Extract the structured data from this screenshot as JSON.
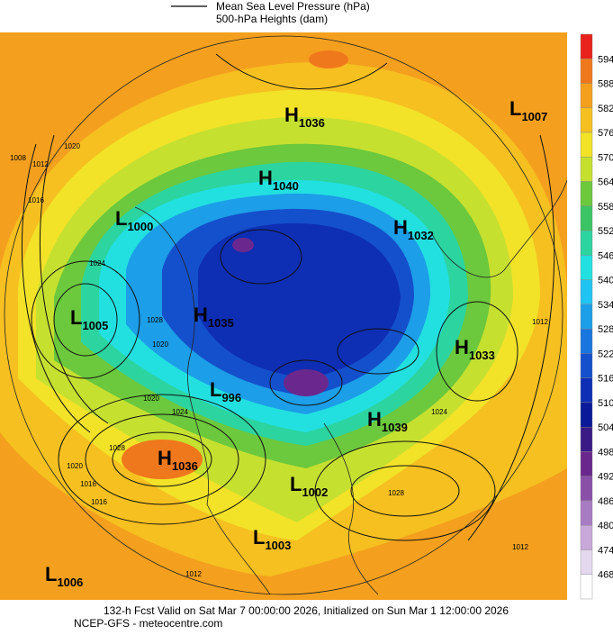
{
  "legend": {
    "items": [
      "Mean Sea Level Pressure (hPa)",
      "500-hPa Heights (dam)"
    ]
  },
  "colorbar": {
    "labels": [
      594,
      588,
      582,
      576,
      570,
      564,
      558,
      552,
      546,
      540,
      534,
      528,
      522,
      516,
      510,
      504,
      498,
      492,
      486,
      480,
      474,
      468
    ],
    "colors": [
      "#e8221c",
      "#f0781c",
      "#f4a01e",
      "#f6c020",
      "#f2e228",
      "#c6e030",
      "#6cc83c",
      "#3cc464",
      "#2cd4a0",
      "#22e0e0",
      "#20c4f2",
      "#1c9ee8",
      "#1876de",
      "#1450cc",
      "#0e2eb4",
      "#0a1a98",
      "#3a1a86",
      "#6a288e",
      "#8a50a8",
      "#a87cc2",
      "#c8a8d8",
      "#e4d8ee",
      "#ffffff"
    ]
  },
  "pressure_centers": [
    {
      "letter": "H",
      "value": "1036"
    },
    {
      "letter": "L",
      "value": "1007"
    },
    {
      "letter": "H",
      "value": "1040"
    },
    {
      "letter": "L",
      "value": "1000"
    },
    {
      "letter": "H",
      "value": "1032"
    },
    {
      "letter": "L",
      "value": "1005"
    },
    {
      "letter": "H",
      "value": "1035"
    },
    {
      "letter": "H",
      "value": "1033"
    },
    {
      "letter": "L",
      "value": "996"
    },
    {
      "letter": "H",
      "value": "1039"
    },
    {
      "letter": "H",
      "value": "1036"
    },
    {
      "letter": "L",
      "value": "1002"
    },
    {
      "letter": "L",
      "value": "1003"
    },
    {
      "letter": "L",
      "value": "1006"
    }
  ],
  "isobar_labels": [
    "1008",
    "1012",
    "1016",
    "1020",
    "1024",
    "1028",
    "1020",
    "1024",
    "1012",
    "1020",
    "1016",
    "1028",
    "1020",
    "1016",
    "1012",
    "1028",
    "1024",
    "1012"
  ],
  "footer": {
    "line1": "132-h Fcst Valid on Sat Mar  7 00:00:00 2026, Initialized on Sun Mar  1 12:00:00 2026",
    "line2": "NCEP-GFS  - meteocentre.com"
  }
}
